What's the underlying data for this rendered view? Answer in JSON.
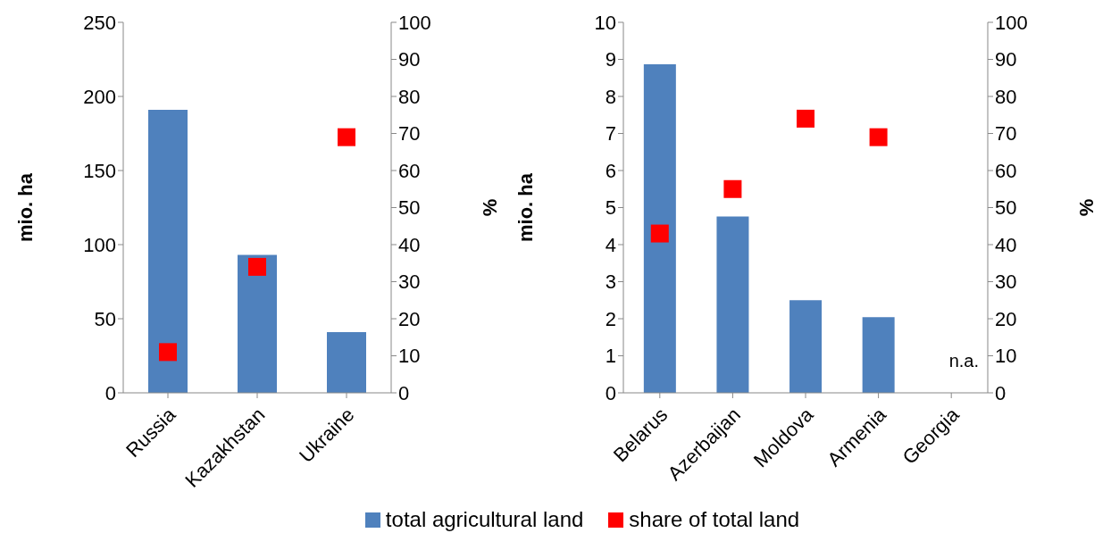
{
  "chart_data": [
    {
      "type": "bar",
      "categories": [
        "Russia",
        "Kazakhstan",
        "Ukraine"
      ],
      "ylabel": "mio. ha",
      "y2label": "%",
      "series": [
        {
          "name": "total agricultural land",
          "color": "#4f81bd",
          "values": [
            191,
            93,
            41
          ]
        },
        {
          "name": "share of total land",
          "type": "scatter",
          "axis": "y2",
          "color": "#ff0000",
          "values": [
            11,
            34,
            69
          ]
        }
      ],
      "ylim": [
        0,
        250
      ],
      "yticks": [
        0,
        50,
        100,
        150,
        200,
        250
      ],
      "y2lim": [
        0,
        100
      ],
      "y2ticks": [
        0,
        10,
        20,
        30,
        40,
        50,
        60,
        70,
        80,
        90,
        100
      ],
      "marker": "square",
      "grid": false,
      "legend": "bottom"
    },
    {
      "type": "bar",
      "categories": [
        "Belarus",
        "Azerbaijan",
        "Moldova",
        "Armenia",
        "Georgia"
      ],
      "ylabel": "mio. ha",
      "y2label": "%",
      "series": [
        {
          "color": "#4f81bd",
          "values": [
            8.87,
            4.76,
            2.5,
            2.04,
            null
          ]
        },
        {
          "type": "scatter",
          "axis": "y2",
          "color": "#ff0000",
          "values": [
            43,
            55,
            74,
            69,
            null
          ]
        }
      ],
      "ylim": [
        0,
        10
      ],
      "yticks": [
        0,
        1,
        2,
        3,
        4,
        5,
        6,
        7,
        8,
        9,
        10
      ],
      "y2lim": [
        0,
        100
      ],
      "y2ticks": [
        0,
        10,
        20,
        30,
        40,
        50,
        60,
        70,
        80,
        90,
        100
      ],
      "annotations": [
        "n.a."
      ],
      "marker": "square",
      "grid": false
    }
  ]
}
